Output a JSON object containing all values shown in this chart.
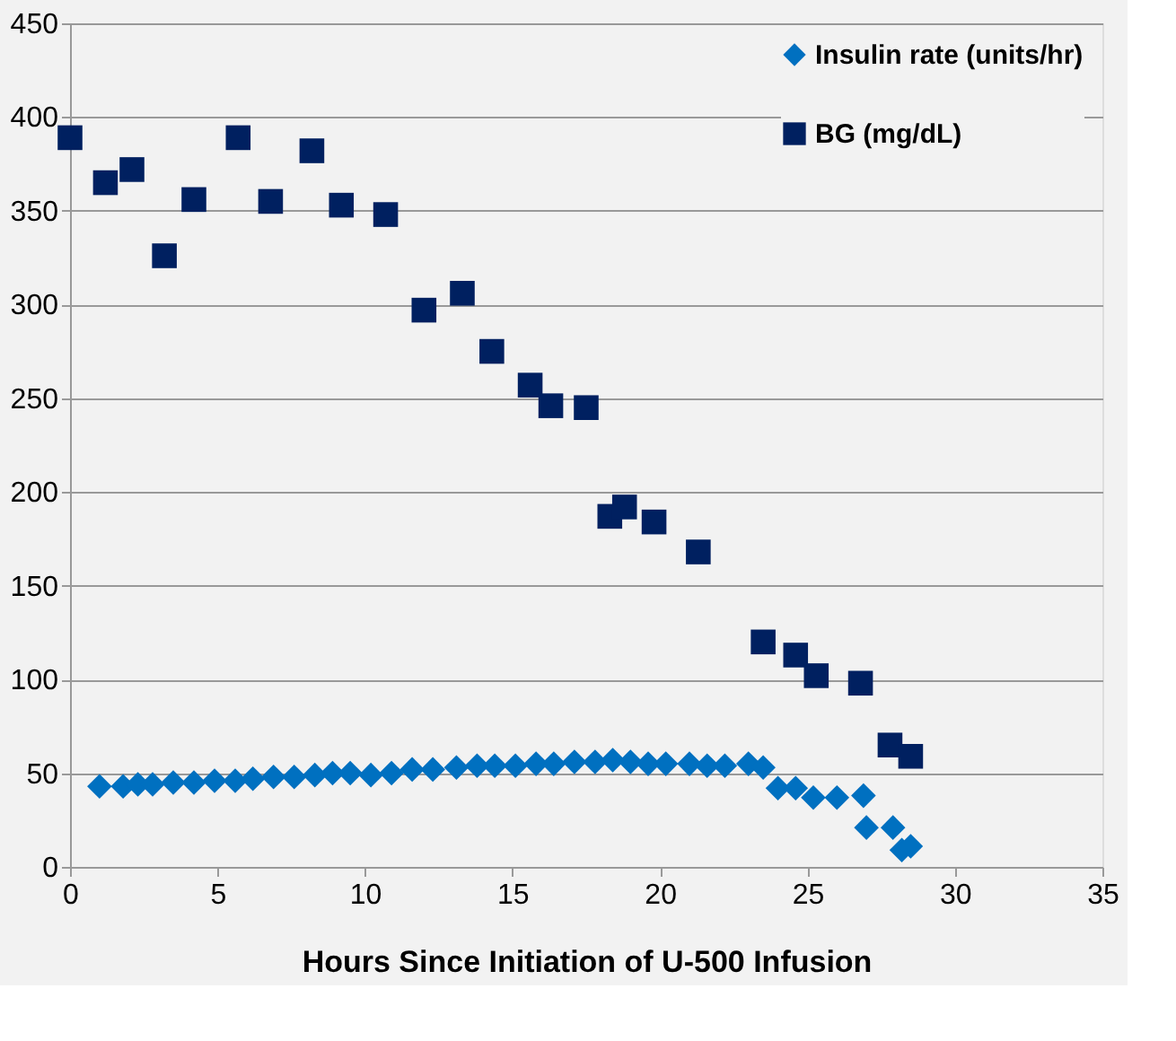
{
  "chart_data": {
    "type": "scatter",
    "xlabel": "Hours Since Initiation of U-500 Infusion",
    "xlim": [
      0,
      35
    ],
    "xticks": [
      0,
      5,
      10,
      15,
      20,
      25,
      30,
      35
    ],
    "ylim": [
      0,
      450
    ],
    "yticks": [
      0,
      50,
      100,
      150,
      200,
      250,
      300,
      350,
      400,
      450
    ],
    "grid": "y",
    "legend": "top right",
    "series": [
      {
        "name": "Insulin rate (units/hr)",
        "color": "#0070c0",
        "marker": "diamond",
        "x": [
          1.0,
          1.8,
          2.3,
          2.8,
          3.5,
          4.2,
          4.9,
          5.6,
          6.2,
          6.9,
          7.6,
          8.3,
          8.9,
          9.5,
          10.2,
          10.9,
          11.6,
          12.3,
          13.1,
          13.8,
          14.4,
          15.1,
          15.8,
          16.4,
          17.1,
          17.8,
          18.4,
          19.0,
          19.6,
          20.2,
          21.0,
          21.6,
          22.2,
          23.0,
          23.5,
          24.0,
          24.6,
          25.2,
          26.0,
          26.9,
          27.0,
          27.9,
          28.2,
          28.5
        ],
        "values": [
          43,
          43,
          44,
          44,
          45,
          45,
          46,
          46,
          47,
          48,
          48,
          49,
          50,
          50,
          49,
          50,
          52,
          52,
          53,
          54,
          54,
          54,
          55,
          55,
          56,
          56,
          57,
          56,
          55,
          55,
          55,
          54,
          54,
          55,
          53,
          42,
          42,
          37,
          37,
          38,
          21,
          21,
          9,
          11
        ]
      },
      {
        "name": "BG (mg/dL)",
        "color": "#002060",
        "marker": "square",
        "x": [
          0.0,
          1.2,
          2.1,
          3.2,
          4.2,
          5.7,
          6.8,
          8.2,
          9.2,
          10.7,
          12.0,
          13.3,
          14.3,
          15.6,
          16.3,
          17.5,
          18.3,
          18.8,
          19.8,
          21.3,
          23.5,
          24.6,
          25.3,
          26.8,
          27.8,
          28.5
        ],
        "values": [
          389,
          365,
          372,
          326,
          356,
          389,
          355,
          382,
          353,
          348,
          297,
          306,
          275,
          257,
          246,
          245,
          187,
          192,
          184,
          168,
          120,
          113,
          102,
          98,
          65,
          59
        ]
      }
    ]
  }
}
